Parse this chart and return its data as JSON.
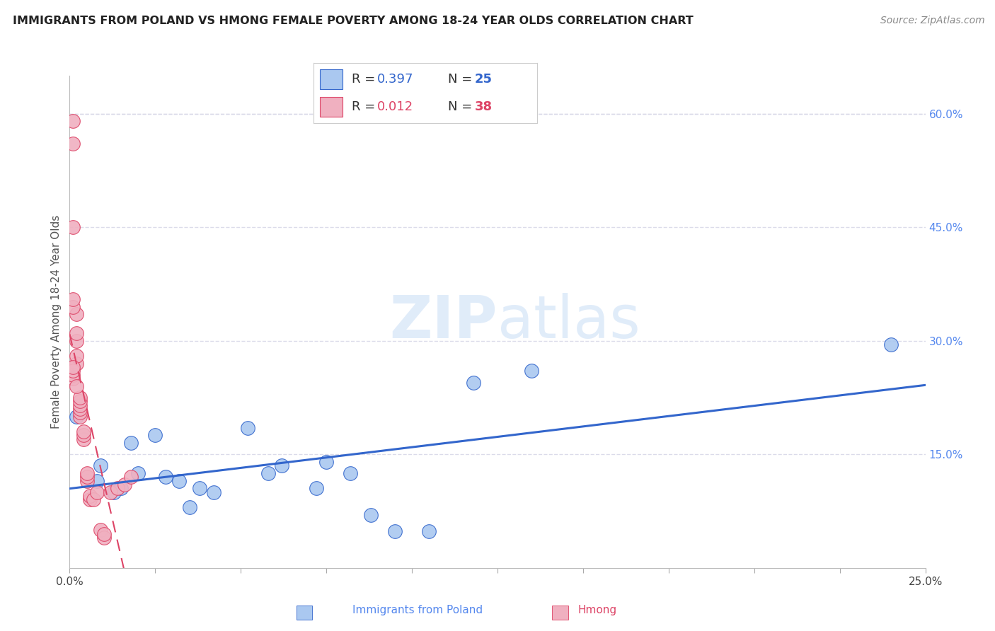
{
  "title": "IMMIGRANTS FROM POLAND VS HMONG FEMALE POVERTY AMONG 18-24 YEAR OLDS CORRELATION CHART",
  "source": "Source: ZipAtlas.com",
  "ylabel": "Female Poverty Among 18-24 Year Olds",
  "xlabel_poland": "Immigrants from Poland",
  "xlabel_hmong": "Hmong",
  "xlim": [
    0.0,
    0.25
  ],
  "ylim": [
    0.0,
    0.65
  ],
  "xticks": [
    0.0,
    0.025,
    0.05,
    0.075,
    0.1,
    0.125,
    0.15,
    0.175,
    0.2,
    0.225,
    0.25
  ],
  "yticks_right": [
    0.15,
    0.3,
    0.45,
    0.6
  ],
  "ytick_labels_right": [
    "15.0%",
    "30.0%",
    "45.0%",
    "60.0%"
  ],
  "poland_R": 0.397,
  "poland_N": 25,
  "hmong_R": 0.012,
  "hmong_N": 38,
  "poland_color": "#aac8f0",
  "hmong_color": "#f0b0c0",
  "poland_line_color": "#3366cc",
  "hmong_line_color": "#dd4466",
  "background_color": "#ffffff",
  "grid_color": "#d8d8e8",
  "watermark": "ZIPatlas",
  "poland_x": [
    0.002,
    0.008,
    0.009,
    0.013,
    0.015,
    0.018,
    0.02,
    0.025,
    0.028,
    0.032,
    0.035,
    0.038,
    0.042,
    0.052,
    0.058,
    0.062,
    0.072,
    0.075,
    0.082,
    0.088,
    0.095,
    0.105,
    0.118,
    0.135,
    0.24
  ],
  "poland_y": [
    0.2,
    0.115,
    0.135,
    0.1,
    0.105,
    0.165,
    0.125,
    0.175,
    0.12,
    0.115,
    0.08,
    0.105,
    0.1,
    0.185,
    0.125,
    0.135,
    0.105,
    0.14,
    0.125,
    0.07,
    0.048,
    0.048,
    0.245,
    0.26,
    0.295
  ],
  "hmong_x": [
    0.001,
    0.001,
    0.001,
    0.002,
    0.002,
    0.002,
    0.002,
    0.002,
    0.003,
    0.003,
    0.003,
    0.003,
    0.003,
    0.003,
    0.004,
    0.004,
    0.004,
    0.005,
    0.005,
    0.005,
    0.006,
    0.006,
    0.007,
    0.008,
    0.009,
    0.01,
    0.01,
    0.012,
    0.014,
    0.016,
    0.018,
    0.001,
    0.001,
    0.001,
    0.001,
    0.001,
    0.001,
    0.002
  ],
  "hmong_y": [
    0.56,
    0.59,
    0.45,
    0.27,
    0.28,
    0.3,
    0.31,
    0.335,
    0.2,
    0.205,
    0.21,
    0.215,
    0.22,
    0.225,
    0.17,
    0.175,
    0.18,
    0.115,
    0.12,
    0.125,
    0.09,
    0.095,
    0.09,
    0.1,
    0.05,
    0.04,
    0.045,
    0.1,
    0.105,
    0.11,
    0.12,
    0.345,
    0.355,
    0.25,
    0.255,
    0.26,
    0.265,
    0.24
  ],
  "title_fontsize": 11.5,
  "source_fontsize": 10,
  "label_fontsize": 11,
  "tick_fontsize": 11,
  "legend_fontsize": 13,
  "watermark_fontsize": 60
}
